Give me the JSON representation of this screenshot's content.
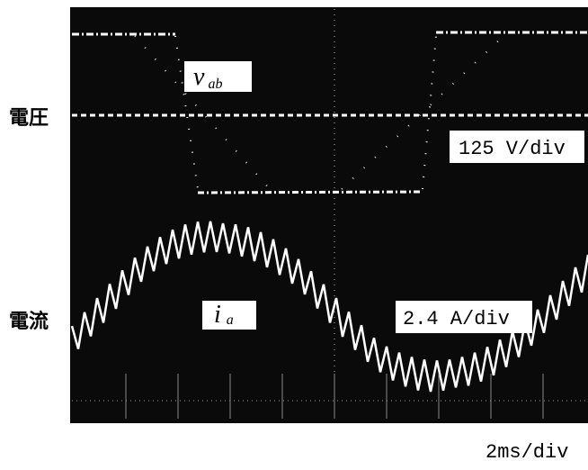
{
  "labels": {
    "voltage": "電圧",
    "current": "電流"
  },
  "traces": {
    "voltage": {
      "symbol": "v",
      "subscript": "ab",
      "scale": "125 V/div"
    },
    "current": {
      "symbol": "i",
      "subscript": "a",
      "scale": "2.4 A/div"
    }
  },
  "time_scale": "2ms/div"
}
